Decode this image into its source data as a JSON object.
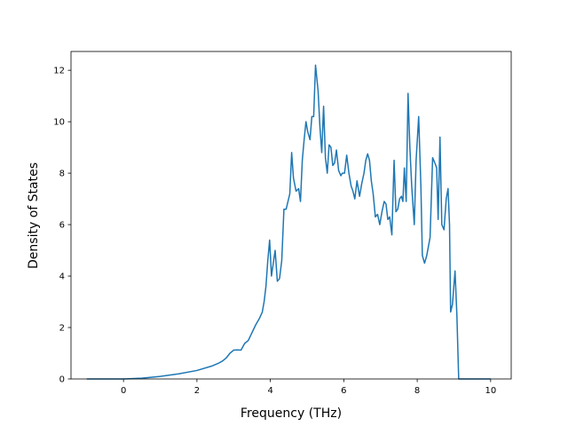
{
  "chart_data": {
    "type": "line",
    "x_label": "Frequency (THz)",
    "y_label": "Density of States",
    "xlim": [
      -1.43,
      10.56
    ],
    "ylim": [
      0,
      12.73
    ],
    "xticks": [
      0,
      2,
      4,
      6,
      8,
      10
    ],
    "yticks": [
      0,
      2,
      4,
      6,
      8,
      10,
      12
    ],
    "series": [
      {
        "color": "#1f77b4",
        "x": [
          -1,
          0,
          0.5,
          1,
          1.5,
          2,
          2.4,
          2.6,
          2.7,
          2.8,
          2.9,
          3.0,
          3.1,
          3.2,
          3.3,
          3.4,
          3.5,
          3.6,
          3.7,
          3.78,
          3.83,
          3.88,
          3.93,
          3.98,
          4.03,
          4.08,
          4.13,
          4.19,
          4.25,
          4.31,
          4.37,
          4.43,
          4.48,
          4.53,
          4.58,
          4.63,
          4.7,
          4.77,
          4.82,
          4.87,
          4.92,
          4.97,
          5.02,
          5.08,
          5.13,
          5.18,
          5.23,
          5.3,
          5.35,
          5.4,
          5.45,
          5.5,
          5.55,
          5.6,
          5.65,
          5.7,
          5.75,
          5.8,
          5.86,
          5.92,
          5.96,
          6.02,
          6.08,
          6.14,
          6.2,
          6.25,
          6.3,
          6.36,
          6.43,
          6.49,
          6.55,
          6.6,
          6.65,
          6.7,
          6.75,
          6.8,
          6.86,
          6.92,
          6.98,
          7.04,
          7.1,
          7.15,
          7.2,
          7.25,
          7.31,
          7.37,
          7.42,
          7.47,
          7.52,
          7.57,
          7.61,
          7.65,
          7.7,
          7.75,
          7.8,
          7.85,
          7.92,
          7.97,
          8.04,
          8.1,
          8.14,
          8.2,
          8.26,
          8.35,
          8.42,
          8.48,
          8.53,
          8.57,
          8.62,
          8.67,
          8.73,
          8.79,
          8.84,
          8.88,
          8.91,
          8.96,
          9.03,
          9.08,
          9.13,
          9.5,
          10
        ],
        "values": [
          0,
          0,
          0.03,
          0.1,
          0.2,
          0.33,
          0.5,
          0.62,
          0.7,
          0.82,
          1.0,
          1.12,
          1.13,
          1.12,
          1.38,
          1.5,
          1.8,
          2.1,
          2.35,
          2.6,
          3.0,
          3.6,
          4.6,
          5.4,
          4.0,
          4.5,
          5.0,
          3.8,
          3.9,
          4.6,
          6.6,
          6.6,
          6.9,
          7.2,
          8.8,
          7.8,
          7.3,
          7.4,
          6.9,
          8.5,
          9.3,
          10.0,
          9.6,
          9.3,
          10.2,
          10.2,
          12.2,
          11.2,
          9.8,
          8.8,
          10.6,
          8.6,
          8.0,
          9.1,
          9.0,
          8.3,
          8.4,
          8.9,
          8.1,
          7.9,
          8.0,
          8.0,
          8.7,
          8.0,
          7.5,
          7.3,
          7.0,
          7.7,
          7.1,
          7.6,
          8.0,
          8.5,
          8.75,
          8.5,
          7.7,
          7.2,
          6.3,
          6.4,
          6.0,
          6.5,
          6.9,
          6.8,
          6.2,
          6.3,
          5.6,
          8.5,
          6.5,
          6.6,
          7.0,
          7.1,
          6.9,
          8.2,
          6.9,
          11.1,
          9.0,
          7.5,
          6.0,
          8.5,
          10.2,
          7.5,
          4.8,
          4.5,
          4.8,
          5.5,
          8.6,
          8.4,
          8.2,
          6.2,
          9.4,
          6.0,
          5.8,
          7.0,
          7.4,
          6.0,
          2.6,
          2.9,
          4.2,
          2.5,
          0,
          0,
          0
        ]
      }
    ]
  }
}
